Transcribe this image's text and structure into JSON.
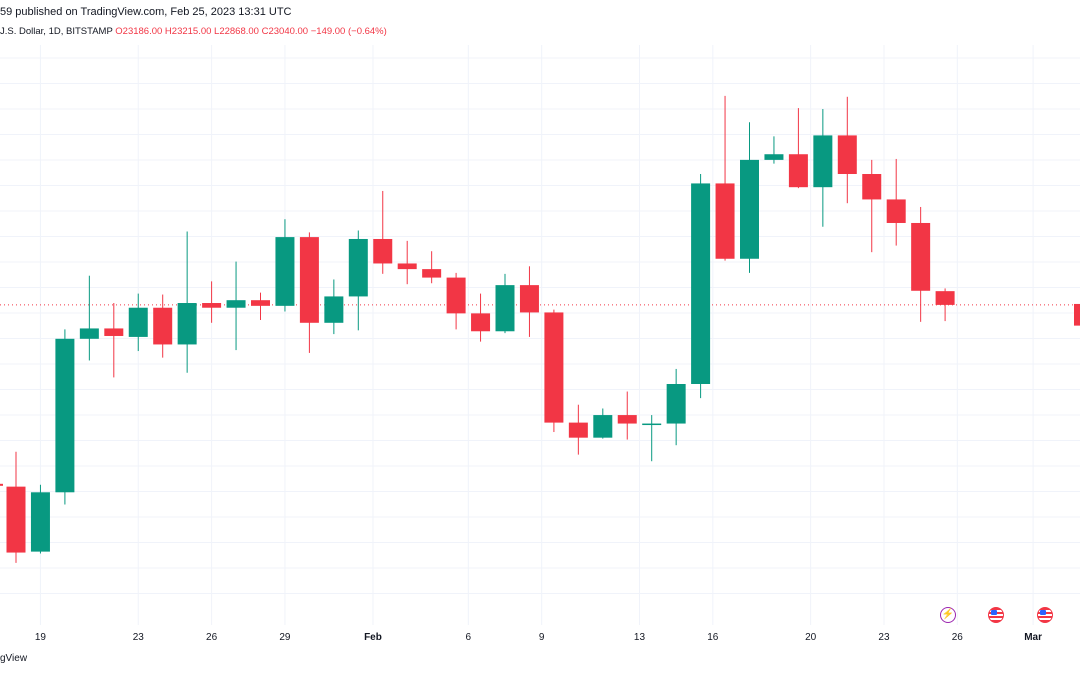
{
  "header": {
    "published": "59 published on TradingView.com, Feb 25, 2023 13:31 UTC",
    "symbol": "J.S. Dollar, 1D, BITSTAMP",
    "ohlc": {
      "open": "O23186.00",
      "high": "H23215.00",
      "low": "L22868.00",
      "close": "C23040.00",
      "change": "−149.00 (−0.64%)"
    }
  },
  "footer": {
    "brand": "gView"
  },
  "colors": {
    "up": "#089981",
    "down": "#f23645",
    "grid": "#f0f3fa",
    "text": "#131722"
  },
  "events": [
    {
      "icon": "lightning-icon"
    },
    {
      "icon": "us-flag-icon"
    },
    {
      "icon": "us-flag-icon"
    }
  ],
  "chart_data": {
    "type": "candlestick",
    "y_range": [
      19800,
      25800
    ],
    "x_ticks": [
      "19",
      "23",
      "26",
      "29",
      "Feb",
      "6",
      "9",
      "13",
      "16",
      "20",
      "23",
      "26",
      "Mar"
    ],
    "current_price": 23040,
    "candles": [
      {
        "date": "Jan 18",
        "open": 21110,
        "high": 21480,
        "low": 20300,
        "close": 20410
      },
      {
        "date": "Jan 19",
        "open": 20420,
        "high": 21130,
        "low": 20400,
        "close": 21050
      },
      {
        "date": "Jan 20",
        "open": 21050,
        "high": 22780,
        "low": 20920,
        "close": 22680
      },
      {
        "date": "Jan 21",
        "open": 22680,
        "high": 23350,
        "low": 22450,
        "close": 22790
      },
      {
        "date": "Jan 22",
        "open": 22790,
        "high": 23060,
        "low": 22270,
        "close": 22710
      },
      {
        "date": "Jan 23",
        "open": 22700,
        "high": 23160,
        "low": 22550,
        "close": 23010
      },
      {
        "date": "Jan 24",
        "open": 23010,
        "high": 23150,
        "low": 22480,
        "close": 22620
      },
      {
        "date": "Jan 25",
        "open": 22620,
        "high": 23820,
        "low": 22320,
        "close": 23060
      },
      {
        "date": "Jan 26",
        "open": 23060,
        "high": 23290,
        "low": 22850,
        "close": 23010
      },
      {
        "date": "Jan 27",
        "open": 23010,
        "high": 23500,
        "low": 22560,
        "close": 23090
      },
      {
        "date": "Jan 28",
        "open": 23090,
        "high": 23170,
        "low": 22880,
        "close": 23030
      },
      {
        "date": "Jan 29",
        "open": 23030,
        "high": 23950,
        "low": 22970,
        "close": 23760
      },
      {
        "date": "Jan 30",
        "open": 23760,
        "high": 23810,
        "low": 22530,
        "close": 22850
      },
      {
        "date": "Jan 31",
        "open": 22850,
        "high": 23310,
        "low": 22730,
        "close": 23130
      },
      {
        "date": "Feb 1",
        "open": 23130,
        "high": 23830,
        "low": 22770,
        "close": 23740
      },
      {
        "date": "Feb 2",
        "open": 23740,
        "high": 24250,
        "low": 23370,
        "close": 23480
      },
      {
        "date": "Feb 3",
        "open": 23480,
        "high": 23720,
        "low": 23260,
        "close": 23420
      },
      {
        "date": "Feb 4",
        "open": 23420,
        "high": 23610,
        "low": 23270,
        "close": 23330
      },
      {
        "date": "Feb 5",
        "open": 23330,
        "high": 23380,
        "low": 22780,
        "close": 22950
      },
      {
        "date": "Feb 6",
        "open": 22950,
        "high": 23160,
        "low": 22650,
        "close": 22760
      },
      {
        "date": "Feb 7",
        "open": 22760,
        "high": 23370,
        "low": 22740,
        "close": 23250
      },
      {
        "date": "Feb 8",
        "open": 23250,
        "high": 23450,
        "low": 22700,
        "close": 22960
      },
      {
        "date": "Feb 9",
        "open": 22960,
        "high": 22990,
        "low": 21690,
        "close": 21790
      },
      {
        "date": "Feb 10",
        "open": 21790,
        "high": 21980,
        "low": 21450,
        "close": 21630
      },
      {
        "date": "Feb 11",
        "open": 21630,
        "high": 21940,
        "low": 21620,
        "close": 21870
      },
      {
        "date": "Feb 12",
        "open": 21870,
        "high": 22120,
        "low": 21610,
        "close": 21780
      },
      {
        "date": "Feb 13",
        "open": 21780,
        "high": 21870,
        "low": 21380,
        "close": 21780
      },
      {
        "date": "Feb 14",
        "open": 21780,
        "high": 22360,
        "low": 21550,
        "close": 22200
      },
      {
        "date": "Feb 15",
        "open": 22200,
        "high": 24430,
        "low": 22050,
        "close": 24330
      },
      {
        "date": "Feb 16",
        "open": 24330,
        "high": 25260,
        "low": 23510,
        "close": 23530
      },
      {
        "date": "Feb 17",
        "open": 23530,
        "high": 24980,
        "low": 23380,
        "close": 24580
      },
      {
        "date": "Feb 18",
        "open": 24580,
        "high": 24830,
        "low": 24540,
        "close": 24640
      },
      {
        "date": "Feb 19",
        "open": 24640,
        "high": 25130,
        "low": 24280,
        "close": 24290
      },
      {
        "date": "Feb 20",
        "open": 24290,
        "high": 25120,
        "low": 23870,
        "close": 24840
      },
      {
        "date": "Feb 21",
        "open": 24840,
        "high": 25250,
        "low": 24120,
        "close": 24430
      },
      {
        "date": "Feb 22",
        "open": 24430,
        "high": 24580,
        "low": 23600,
        "close": 24160
      },
      {
        "date": "Feb 23",
        "open": 24160,
        "high": 24590,
        "low": 23670,
        "close": 23910
      },
      {
        "date": "Feb 24",
        "open": 23910,
        "high": 24080,
        "low": 22860,
        "close": 23190
      },
      {
        "date": "Feb 25",
        "open": 23186,
        "high": 23215,
        "low": 22868,
        "close": 23040
      }
    ]
  }
}
